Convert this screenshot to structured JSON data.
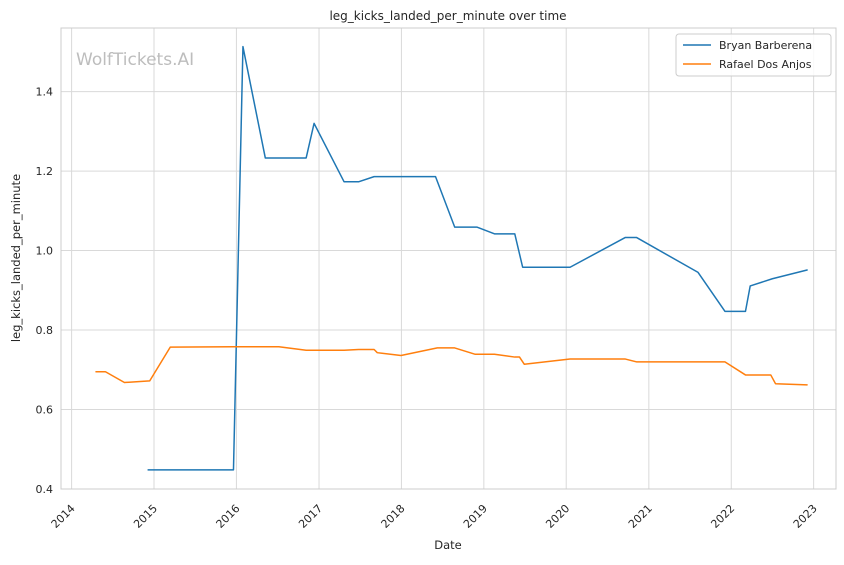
{
  "chart_data": {
    "type": "line",
    "title": "leg_kicks_landed_per_minute over time",
    "xlabel": "Date",
    "ylabel": "leg_kicks_landed_per_minute",
    "watermark": "WolfTickets.AI",
    "x_ticks": [
      "2014",
      "2015",
      "2016",
      "2017",
      "2018",
      "2019",
      "2020",
      "2021",
      "2022",
      "2023"
    ],
    "y_ticks": [
      "0.4",
      "0.6",
      "0.8",
      "1.0",
      "1.2",
      "1.4"
    ],
    "xlim": [
      "2013-11-15",
      "2023-04-10"
    ],
    "ylim": [
      0.4,
      1.56
    ],
    "grid": true,
    "legend_position": "top-right",
    "series": [
      {
        "name": "Bryan Barberena",
        "color": "#1f77b4",
        "points": [
          [
            "2014-12-06",
            0.448
          ],
          [
            "2015-12-19",
            0.448
          ],
          [
            "2016-01-30",
            1.513
          ],
          [
            "2016-05-08",
            1.233
          ],
          [
            "2016-11-05",
            1.233
          ],
          [
            "2016-12-10",
            1.32
          ],
          [
            "2017-04-22",
            1.173
          ],
          [
            "2017-06-25",
            1.173
          ],
          [
            "2017-09-02",
            1.186
          ],
          [
            "2018-06-01",
            1.186
          ],
          [
            "2018-08-25",
            1.059
          ],
          [
            "2018-12-01",
            1.059
          ],
          [
            "2019-02-17",
            1.042
          ],
          [
            "2019-05-18",
            1.042
          ],
          [
            "2019-06-22",
            0.958
          ],
          [
            "2020-01-18",
            0.958
          ],
          [
            "2020-09-19",
            1.033
          ],
          [
            "2020-11-07",
            1.033
          ],
          [
            "2021-08-07",
            0.945
          ],
          [
            "2021-12-04",
            0.847
          ],
          [
            "2022-03-05",
            0.847
          ],
          [
            "2022-03-26",
            0.911
          ],
          [
            "2022-07-02",
            0.929
          ],
          [
            "2022-12-03",
            0.951
          ]
        ]
      },
      {
        "name": "Rafael Dos Anjos",
        "color": "#ff7f0e",
        "points": [
          [
            "2014-04-19",
            0.695
          ],
          [
            "2014-05-31",
            0.695
          ],
          [
            "2014-08-23",
            0.668
          ],
          [
            "2014-12-13",
            0.672
          ],
          [
            "2015-03-14",
            0.757
          ],
          [
            "2015-12-19",
            0.758
          ],
          [
            "2016-07-07",
            0.758
          ],
          [
            "2016-11-05",
            0.749
          ],
          [
            "2017-04-22",
            0.749
          ],
          [
            "2017-06-25",
            0.751
          ],
          [
            "2017-09-02",
            0.751
          ],
          [
            "2017-09-16",
            0.743
          ],
          [
            "2017-12-30",
            0.736
          ],
          [
            "2018-06-09",
            0.755
          ],
          [
            "2018-08-25",
            0.755
          ],
          [
            "2018-11-24",
            0.739
          ],
          [
            "2019-02-17",
            0.739
          ],
          [
            "2019-05-18",
            0.732
          ],
          [
            "2019-06-08",
            0.732
          ],
          [
            "2019-06-29",
            0.714
          ],
          [
            "2020-01-18",
            0.727
          ],
          [
            "2020-09-19",
            0.727
          ],
          [
            "2020-11-07",
            0.72
          ],
          [
            "2021-12-04",
            0.72
          ],
          [
            "2022-03-05",
            0.687
          ],
          [
            "2022-06-25",
            0.687
          ],
          [
            "2022-07-16",
            0.665
          ],
          [
            "2022-12-03",
            0.662
          ]
        ]
      }
    ]
  }
}
